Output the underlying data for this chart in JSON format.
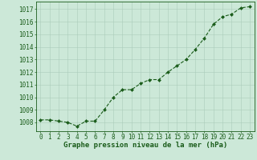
{
  "x": [
    0,
    1,
    2,
    3,
    4,
    5,
    6,
    7,
    8,
    9,
    10,
    11,
    12,
    13,
    14,
    15,
    16,
    17,
    18,
    19,
    20,
    21,
    22,
    23
  ],
  "y": [
    1008.2,
    1008.2,
    1008.1,
    1008.0,
    1007.7,
    1008.1,
    1008.1,
    1009.0,
    1010.0,
    1010.6,
    1010.6,
    1011.1,
    1011.4,
    1011.4,
    1012.0,
    1012.5,
    1013.0,
    1013.8,
    1014.7,
    1015.8,
    1016.4,
    1016.6,
    1017.1,
    1017.2
  ],
  "line_color": "#1a5c1a",
  "marker": "D",
  "marker_size": 2.0,
  "bg_color": "#cce8d8",
  "grid_color": "#aaccbb",
  "xlabel": "Graphe pression niveau de la mer (hPa)",
  "xlabel_color": "#1a5c1a",
  "tick_color": "#1a5c1a",
  "ylim": [
    1007.3,
    1017.6
  ],
  "xlim": [
    -0.5,
    23.5
  ],
  "yticks": [
    1008,
    1009,
    1010,
    1011,
    1012,
    1013,
    1014,
    1015,
    1016,
    1017
  ],
  "xticks": [
    0,
    1,
    2,
    3,
    4,
    5,
    6,
    7,
    8,
    9,
    10,
    11,
    12,
    13,
    14,
    15,
    16,
    17,
    18,
    19,
    20,
    21,
    22,
    23
  ],
  "tick_fontsize": 5.5,
  "xlabel_fontsize": 6.5,
  "linewidth": 0.8
}
